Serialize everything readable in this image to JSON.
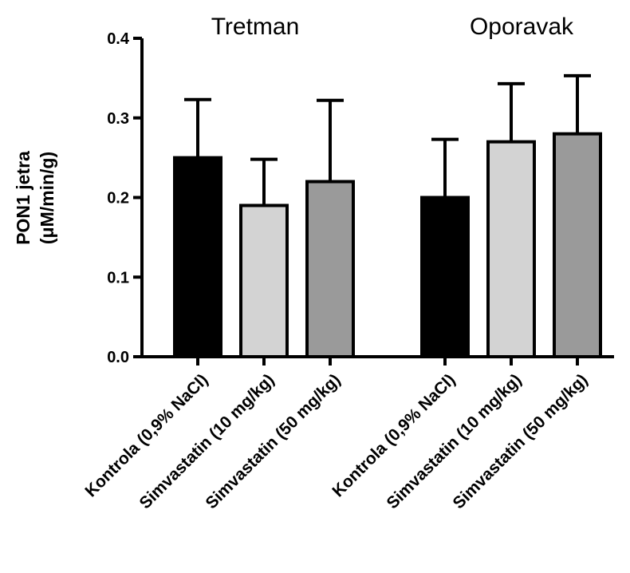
{
  "chart_data": {
    "type": "bar",
    "ylabel_line1": "PON1 jetra",
    "ylabel_line2": "(μM/min/g)",
    "ylim": [
      0,
      0.4
    ],
    "yticks": [
      "0.0",
      "0.1",
      "0.2",
      "0.3",
      "0.4"
    ],
    "yticks_values": [
      0,
      0.1,
      0.2,
      0.3,
      0.4
    ],
    "grid": false,
    "groups": [
      {
        "title": "Tretman",
        "bars": [
          {
            "category": "Kontrola (0,9% NaCl)",
            "value": 0.25,
            "error": 0.073,
            "color": "#000000"
          },
          {
            "category": "Simvastatin (10 mg/kg)",
            "value": 0.19,
            "error": 0.058,
            "color": "#d3d3d3"
          },
          {
            "category": "Simvastatin (50 mg/kg)",
            "value": 0.22,
            "error": 0.102,
            "color": "#9a9a9a"
          }
        ]
      },
      {
        "title": "Oporavak",
        "bars": [
          {
            "category": "Kontrola (0,9% NaCl)",
            "value": 0.2,
            "error": 0.073,
            "color": "#000000"
          },
          {
            "category": "Simvastatin (10 mg/kg)",
            "value": 0.27,
            "error": 0.073,
            "color": "#d3d3d3"
          },
          {
            "category": "Simvastatin (50 mg/kg)",
            "value": 0.28,
            "error": 0.073,
            "color": "#9a9a9a"
          }
        ]
      }
    ]
  }
}
